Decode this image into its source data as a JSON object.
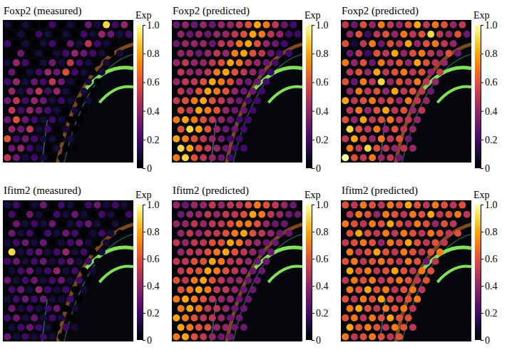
{
  "chart_data": [
    {
      "type": "heatmap",
      "title": "Foxp2 (measured)",
      "color": "inferno",
      "colorbar": {
        "title": "Exp",
        "range": [
          0,
          1
        ],
        "ticks": [
          0,
          0.2,
          0.4,
          0.6,
          0.8,
          {
            "value": 1,
            "label": "1.0"
          }
        ]
      },
      "cells": [
        [
          0.1,
          0,
          0.1,
          0,
          0,
          0.2,
          0,
          0.1,
          0,
          0.3,
          0.1,
          0.9,
          0.2,
          0.4
        ],
        [
          0,
          0.1,
          0,
          0.2,
          0.1,
          0,
          0.1,
          0,
          0.2,
          0.1,
          0.4,
          0.3,
          0.1,
          0.2
        ],
        [
          0.2,
          0,
          0.1,
          0,
          0.1,
          0.2,
          0,
          0.3,
          0.1,
          0.5,
          0.2,
          0.1,
          0
        ],
        [
          0,
          0.3,
          0,
          0.1,
          0,
          0.1,
          0.2,
          0.4,
          0.3,
          0.2,
          0.1,
          0,
          0.1
        ],
        [
          0.1,
          0.4,
          0.2,
          0,
          0.1,
          0.3,
          0.1,
          0.5,
          0.2,
          0.1,
          0,
          0.1
        ],
        [
          0.3,
          0,
          0.1,
          0.2,
          0.4,
          0.3,
          0.6,
          0.2,
          0.1,
          0,
          0.1
        ],
        [
          0.2,
          0.4,
          0.1,
          0.3,
          0.2,
          0.5,
          0.3,
          0.1,
          0,
          0.1,
          0
        ],
        [
          0.4,
          0.1,
          0.3,
          0.5,
          0.2,
          0.4,
          0.1,
          0,
          0.1,
          0
        ],
        [
          0.3,
          0.5,
          0.2,
          0.4,
          0.3,
          0.1,
          0.2,
          0.1,
          0,
          0.1
        ],
        [
          0.5,
          0.2,
          0.4,
          0.3,
          0.2,
          0.1,
          0,
          0.1,
          0
        ],
        [
          0.3,
          0.6,
          0.3,
          0.2,
          0.1,
          0.2,
          0.1,
          0,
          0
        ],
        [
          0.4,
          0.3,
          0.5,
          0.1,
          0.2,
          0,
          0.1,
          0
        ],
        [
          0.6,
          0.2,
          0.3,
          0.2,
          0.1,
          0.1,
          0,
          0.1
        ],
        [
          0.3,
          0.4,
          0.2,
          0.1,
          0,
          0.1,
          0,
          0
        ],
        [
          0.5,
          0.3,
          0.1,
          0.2,
          0.1,
          0,
          0
        ]
      ]
    },
    {
      "type": "heatmap",
      "title": "Foxp2 (predicted)",
      "color": "inferno",
      "colorbar": {
        "title": "Exp",
        "range": [
          0,
          1
        ],
        "ticks": [
          0,
          0.2,
          0.4,
          0.6,
          0.8,
          {
            "value": 1,
            "label": "1.0"
          }
        ]
      },
      "cells": [
        [
          0.3,
          0.4,
          0.3,
          0.4,
          0.3,
          0.4,
          0.4,
          0.5,
          0.6,
          0.8,
          0.7,
          0.5,
          0.3,
          0.2
        ],
        [
          0.4,
          0.3,
          0.4,
          0.3,
          0.4,
          0.4,
          0.5,
          0.6,
          0.8,
          0.7,
          0.5,
          0.4,
          0.2,
          0.2
        ],
        [
          0.3,
          0.4,
          0.4,
          0.4,
          0.3,
          0.5,
          0.5,
          0.7,
          0.8,
          0.6,
          0.4,
          0.3,
          0.2
        ],
        [
          0.4,
          0.4,
          0.3,
          0.4,
          0.5,
          0.4,
          0.7,
          0.8,
          0.6,
          0.5,
          0.3,
          0.2,
          0.2
        ],
        [
          0.4,
          0.5,
          0.4,
          0.4,
          0.5,
          0.6,
          0.8,
          0.7,
          0.5,
          0.4,
          0.3,
          0.2
        ],
        [
          0.5,
          0.4,
          0.4,
          0.5,
          0.7,
          0.8,
          0.6,
          0.5,
          0.4,
          0.3,
          0.2
        ],
        [
          0.4,
          0.5,
          0.5,
          0.6,
          0.8,
          0.7,
          0.6,
          0.4,
          0.3,
          0.3,
          0.2
        ],
        [
          0.5,
          0.4,
          0.6,
          0.8,
          0.7,
          0.6,
          0.4,
          0.3,
          0.3,
          0.2
        ],
        [
          0.5,
          0.6,
          0.7,
          0.8,
          0.6,
          0.5,
          0.4,
          0.3,
          0.2,
          0.2
        ],
        [
          0.6,
          0.5,
          0.8,
          0.7,
          0.6,
          0.4,
          0.3,
          0.3,
          0.2
        ],
        [
          0.7,
          0.8,
          0.7,
          0.6,
          0.5,
          0.4,
          0.3,
          0.2,
          0.2
        ],
        [
          0.6,
          0.9,
          0.8,
          0.6,
          0.4,
          0.3,
          0.3,
          0.2
        ],
        [
          0.8,
          0.7,
          0.6,
          0.5,
          0.4,
          0.3,
          0.2,
          0.2
        ],
        [
          0.9,
          0.8,
          0.6,
          0.5,
          0.4,
          0.3,
          0.2,
          0.2
        ],
        [
          0.7,
          0.9,
          0.6,
          0.5,
          0.4,
          0.3,
          0.2
        ]
      ]
    },
    {
      "type": "heatmap",
      "title": "Foxp2 (predicted)",
      "color": "inferno",
      "colorbar": {
        "title": "Exp",
        "range": [
          0,
          1
        ],
        "ticks": [
          0,
          0.2,
          0.4,
          0.6,
          0.8,
          {
            "value": 1,
            "label": "1.0"
          }
        ]
      },
      "cells": [
        [
          0.5,
          0.3,
          0.6,
          0.4,
          0.7,
          0.5,
          0.4,
          0.6,
          0.8,
          0.5,
          0.7,
          0.6,
          0.4,
          0.5
        ],
        [
          0.4,
          0.6,
          0.2,
          0.5,
          0.6,
          0.4,
          0.7,
          0.5,
          0.6,
          0.9,
          0.5,
          0.4,
          0.6,
          0.3
        ],
        [
          0.6,
          0.1,
          0.5,
          0.7,
          0.3,
          0.6,
          0.5,
          0.8,
          0.4,
          0.6,
          0.7,
          0.5,
          0.4
        ],
        [
          0.3,
          0.5,
          0.2,
          0.6,
          0.5,
          0.8,
          0.4,
          0.6,
          0.7,
          0.5,
          0.4,
          0.6,
          0.3
        ],
        [
          0.7,
          0.4,
          0.6,
          0.3,
          0.7,
          0.5,
          0.6,
          0.4,
          0.8,
          0.6,
          0.5,
          0.4
        ],
        [
          0.5,
          0.6,
          0.4,
          0.8,
          0.5,
          0.6,
          0.7,
          0.5,
          0.6,
          0.4,
          0.5
        ],
        [
          0.6,
          0.3,
          0.7,
          0.5,
          0.9,
          0.4,
          0.6,
          0.5,
          0.7,
          0.5,
          0.4
        ],
        [
          0.4,
          0.7,
          0.5,
          0.6,
          0.4,
          0.8,
          0.5,
          0.6,
          0.5,
          0.3
        ],
        [
          0.8,
          0.5,
          0.6,
          0.7,
          0.5,
          0.6,
          0.4,
          0.7,
          0.5,
          0.4
        ],
        [
          0.5,
          0.7,
          0.4,
          0.6,
          0.8,
          0.5,
          0.6,
          0.4,
          0.5
        ],
        [
          0.6,
          0.4,
          0.8,
          0.5,
          0.6,
          0.7,
          0.5,
          0.5,
          0.4
        ],
        [
          0.9,
          0.6,
          0.5,
          0.7,
          0.4,
          0.6,
          0.5,
          0.4
        ],
        [
          0.5,
          0.8,
          0.6,
          0.4,
          0.7,
          0.5,
          0.6,
          0.3
        ],
        [
          0.7,
          0.5,
          0.9,
          0.6,
          0.5,
          0.4,
          0.5,
          0.4
        ],
        [
          1,
          0.6,
          0.5,
          0.7,
          0.4,
          0.5,
          0.3
        ]
      ]
    },
    {
      "type": "heatmap",
      "title": "Ifitm2 (measured)",
      "color": "inferno",
      "colorbar": {
        "title": "Exp",
        "range": [
          0,
          1
        ],
        "ticks": [
          0,
          0.2,
          0.4,
          0.6,
          0.8,
          {
            "value": 1,
            "label": "1.0"
          }
        ]
      },
      "cells": [
        [
          0.1,
          0.2,
          0,
          0.1,
          0.3,
          0,
          0.2,
          0.1,
          0,
          0.2,
          0.3,
          0.1,
          0.2,
          0.1
        ],
        [
          0.2,
          0,
          0.3,
          0.1,
          0,
          0.2,
          0.1,
          0.3,
          0.1,
          0,
          0.2,
          0.1,
          0,
          0.2
        ],
        [
          0,
          0.3,
          0.1,
          0.2,
          0.1,
          0.3,
          0,
          0.1,
          0.2,
          0.3,
          0.1,
          0,
          0.1
        ],
        [
          0.3,
          0.1,
          0.2,
          0,
          0.2,
          0.1,
          0.3,
          0.2,
          0,
          0.1,
          0.2,
          0.1,
          0
        ],
        [
          0.1,
          0.2,
          0.3,
          0.1,
          0.3,
          0,
          0.1,
          0.2,
          0.3,
          0.1,
          0,
          0.1
        ],
        [
          0.9,
          0.1,
          0.2,
          0.3,
          0.1,
          0.2,
          0.4,
          0.1,
          0.2,
          0,
          0.1
        ],
        [
          0.2,
          0.3,
          0.1,
          0.2,
          0.3,
          0.1,
          0.2,
          0.3,
          0.1,
          0.2,
          0
        ],
        [
          0.1,
          0.2,
          0.3,
          0.1,
          0.2,
          0.4,
          0.1,
          0.2,
          0,
          0.1
        ],
        [
          0.3,
          0.1,
          0.2,
          0.3,
          0.1,
          0.2,
          0.3,
          0.1,
          0.2,
          0
        ],
        [
          0.2,
          0.3,
          0.1,
          0.4,
          0.2,
          0.1,
          0.2,
          0,
          0.1
        ],
        [
          0.1,
          0.2,
          0.3,
          0.2,
          0.3,
          0.1,
          0.1,
          0.2,
          0
        ],
        [
          0.3,
          0.1,
          0.2,
          0.1,
          0.2,
          0.3,
          0,
          0.1
        ],
        [
          0.2,
          0.3,
          0.1,
          0.3,
          0.1,
          0.2,
          0.1,
          0
        ],
        [
          0.1,
          0.2,
          0.3,
          0.2,
          0.1,
          0,
          0.2,
          0.1
        ],
        [
          0.3,
          0.1,
          0.2,
          0.1,
          0.2,
          0.1,
          0
        ]
      ]
    },
    {
      "type": "heatmap",
      "title": "Ifitm2 (predicted)",
      "color": "inferno",
      "colorbar": {
        "title": "Exp",
        "range": [
          0,
          1
        ],
        "ticks": [
          0,
          0.2,
          0.4,
          0.6,
          0.8,
          {
            "value": 1,
            "label": "1.0"
          }
        ]
      },
      "cells": [
        [
          0.4,
          0.3,
          0.4,
          0.4,
          0.5,
          0.4,
          0.5,
          0.5,
          0.6,
          0.7,
          0.6,
          0.5,
          0.4,
          0.3
        ],
        [
          0.3,
          0.4,
          0.4,
          0.5,
          0.4,
          0.5,
          0.5,
          0.6,
          0.8,
          0.7,
          0.5,
          0.4,
          0.3,
          0.3
        ],
        [
          0.4,
          0.4,
          0.5,
          0.4,
          0.5,
          0.5,
          0.6,
          0.7,
          0.7,
          0.6,
          0.4,
          0.3,
          0.3
        ],
        [
          0.4,
          0.5,
          0.4,
          0.5,
          0.5,
          0.6,
          0.7,
          0.8,
          0.6,
          0.5,
          0.4,
          0.3,
          0.3
        ],
        [
          0.5,
          0.4,
          0.5,
          0.5,
          0.6,
          0.6,
          0.8,
          0.7,
          0.5,
          0.4,
          0.3,
          0.3
        ],
        [
          0.4,
          0.5,
          0.5,
          0.6,
          0.7,
          0.8,
          0.6,
          0.5,
          0.4,
          0.3,
          0.3
        ],
        [
          0.5,
          0.5,
          0.6,
          0.6,
          0.8,
          0.7,
          0.5,
          0.5,
          0.4,
          0.3,
          0.3
        ],
        [
          0.5,
          0.6,
          0.6,
          0.8,
          0.7,
          0.6,
          0.5,
          0.4,
          0.3,
          0.3
        ],
        [
          0.6,
          0.5,
          0.7,
          0.8,
          0.6,
          0.5,
          0.4,
          0.4,
          0.3,
          0.3
        ],
        [
          0.6,
          0.7,
          0.8,
          0.7,
          0.5,
          0.5,
          0.4,
          0.3,
          0.3
        ],
        [
          0.7,
          0.8,
          0.7,
          0.6,
          0.5,
          0.4,
          0.4,
          0.3,
          0.3
        ],
        [
          0.7,
          0.8,
          0.7,
          0.5,
          0.5,
          0.4,
          0.3,
          0.3
        ],
        [
          0.8,
          0.7,
          0.6,
          0.5,
          0.5,
          0.4,
          0.3,
          0.3
        ],
        [
          0.8,
          0.7,
          0.6,
          0.6,
          0.4,
          0.4,
          0.3,
          0.3
        ],
        [
          0.7,
          0.8,
          0.6,
          0.5,
          0.4,
          0.3,
          0.3
        ]
      ]
    },
    {
      "type": "heatmap",
      "title": "Ifitm2 (predicted)",
      "color": "inferno",
      "colorbar": {
        "title": "Exp",
        "range": [
          0,
          1
        ],
        "ticks": [
          0,
          0.2,
          0.4,
          0.6,
          0.8,
          {
            "value": 1,
            "label": "1.0"
          }
        ]
      },
      "cells": [
        [
          0.6,
          0.5,
          0.7,
          0.6,
          0.5,
          0.7,
          0.6,
          0.8,
          0.6,
          0.5,
          0.7,
          0.6,
          0.5,
          0.6
        ],
        [
          0.5,
          0.7,
          0.6,
          0.4,
          0.7,
          0.6,
          0.5,
          0.7,
          0.6,
          0.8,
          0.5,
          0.6,
          0.7,
          0.5
        ],
        [
          0.7,
          0.6,
          0.5,
          0.7,
          0.6,
          0.8,
          0.6,
          0.5,
          0.7,
          0.6,
          0.4,
          0.6,
          0.5
        ],
        [
          0.6,
          0.8,
          0.6,
          0.5,
          0.7,
          0.5,
          0.7,
          0.6,
          0.5,
          0.7,
          0.6,
          0.5,
          0.6
        ],
        [
          0.5,
          0.6,
          0.7,
          0.6,
          0.4,
          0.7,
          0.6,
          0.8,
          0.6,
          0.5,
          0.6,
          0.5
        ],
        [
          0.7,
          0.5,
          0.6,
          0.8,
          0.6,
          0.5,
          0.7,
          0.6,
          0.5,
          0.6,
          0.7
        ],
        [
          0.6,
          0.7,
          0.5,
          0.6,
          0.7,
          0.6,
          0.5,
          0.7,
          0.6,
          0.3,
          0.5
        ],
        [
          0.8,
          0.6,
          0.7,
          0.5,
          0.6,
          0.8,
          0.6,
          0.5,
          0.7,
          0.6
        ],
        [
          0.5,
          0.7,
          0.6,
          0.7,
          0.5,
          0.6,
          0.7,
          0.6,
          0.5,
          0.6
        ],
        [
          0.7,
          0.6,
          0.8,
          0.6,
          0.7,
          0.5,
          0.6,
          0.7,
          0.5
        ],
        [
          0.6,
          0.5,
          0.7,
          0.6,
          0.8,
          0.6,
          0.5,
          0.6,
          0.7
        ],
        [
          0.7,
          0.8,
          0.6,
          0.5,
          0.7,
          0.6,
          0.7,
          0.5
        ],
        [
          0.6,
          0.7,
          0.5,
          0.7,
          0.6,
          0.8,
          0.6,
          0.6
        ],
        [
          0.8,
          0.6,
          0.7,
          0.6,
          0.5,
          0.7,
          0.6,
          0.5
        ],
        [
          0.7,
          0.5,
          0.6,
          0.7,
          0.6,
          0.5,
          0.6
        ]
      ]
    }
  ]
}
